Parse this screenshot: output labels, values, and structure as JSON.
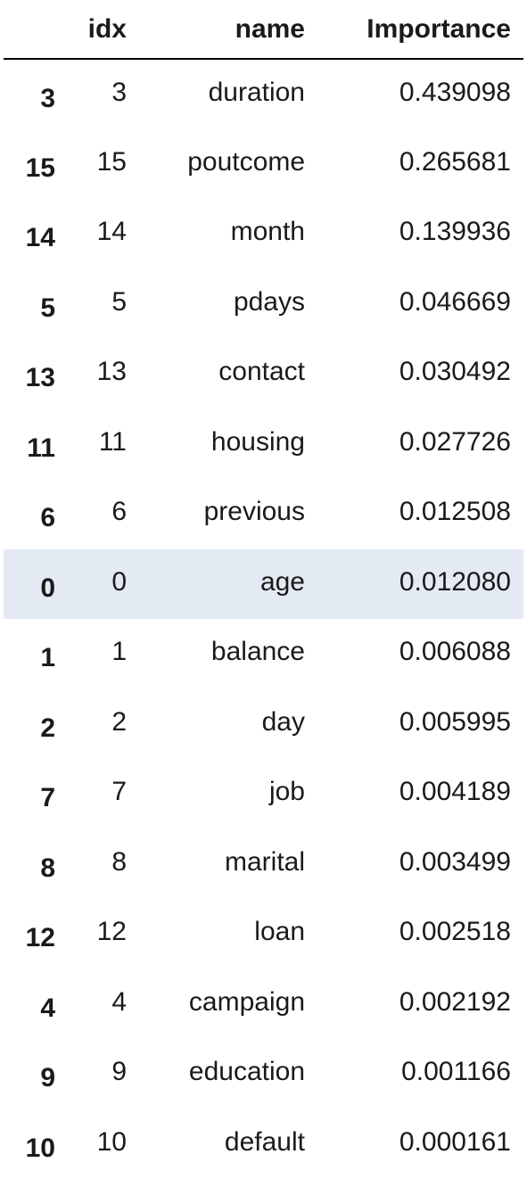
{
  "table": {
    "columns": [
      "idx",
      "name",
      "Importance"
    ],
    "highlight_color": "#e3eaf3",
    "rows": [
      {
        "index": "3",
        "idx": "3",
        "name": "duration",
        "importance": "0.439098"
      },
      {
        "index": "15",
        "idx": "15",
        "name": "poutcome",
        "importance": "0.265681"
      },
      {
        "index": "14",
        "idx": "14",
        "name": "month",
        "importance": "0.139936"
      },
      {
        "index": "5",
        "idx": "5",
        "name": "pdays",
        "importance": "0.046669"
      },
      {
        "index": "13",
        "idx": "13",
        "name": "contact",
        "importance": "0.030492"
      },
      {
        "index": "11",
        "idx": "11",
        "name": "housing",
        "importance": "0.027726"
      },
      {
        "index": "6",
        "idx": "6",
        "name": "previous",
        "importance": "0.012508"
      },
      {
        "index": "0",
        "idx": "0",
        "name": "age",
        "importance": "0.012080",
        "highlighted": true
      },
      {
        "index": "1",
        "idx": "1",
        "name": "balance",
        "importance": "0.006088"
      },
      {
        "index": "2",
        "idx": "2",
        "name": "day",
        "importance": "0.005995"
      },
      {
        "index": "7",
        "idx": "7",
        "name": "job",
        "importance": "0.004189"
      },
      {
        "index": "8",
        "idx": "8",
        "name": "marital",
        "importance": "0.003499"
      },
      {
        "index": "12",
        "idx": "12",
        "name": "loan",
        "importance": "0.002518"
      },
      {
        "index": "4",
        "idx": "4",
        "name": "campaign",
        "importance": "0.002192"
      },
      {
        "index": "9",
        "idx": "9",
        "name": "education",
        "importance": "0.001166"
      },
      {
        "index": "10",
        "idx": "10",
        "name": "default",
        "importance": "0.000161"
      }
    ]
  }
}
